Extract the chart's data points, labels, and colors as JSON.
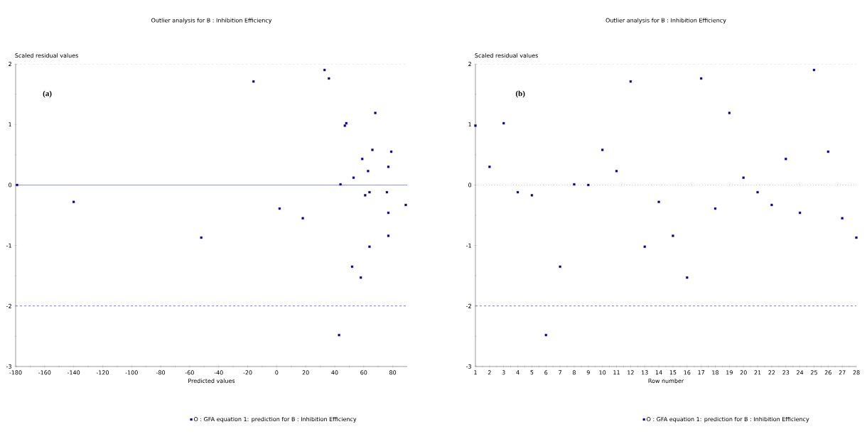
{
  "chart_data": [
    {
      "type": "scatter",
      "title": "Outlier analysis for B : Inhibition Efficiency",
      "xlabel": "Predicted values",
      "ylabel": "Scaled residual values",
      "annotations": [
        "(a)"
      ],
      "series": [
        {
          "name": "O : GFA equation 1: prediction for B : Inhibition Efficiency",
          "color": "#000099",
          "x": [
            47,
            77,
            48,
            64,
            61,
            43,
            52,
            44,
            -179,
            66,
            63,
            -16,
            64,
            -140,
            77,
            58,
            36,
            2,
            68,
            53,
            76,
            89,
            59,
            77,
            33,
            79,
            18,
            -52
          ],
          "values": [
            0.98,
            0.3,
            1.02,
            -0.12,
            -0.17,
            -2.48,
            -1.35,
            0.01,
            0.0,
            0.58,
            0.23,
            1.71,
            -1.02,
            -0.28,
            -0.84,
            -1.53,
            1.76,
            -0.39,
            1.19,
            0.12,
            -0.12,
            -0.33,
            0.43,
            -0.46,
            1.9,
            0.55,
            -0.55,
            -0.87
          ]
        }
      ],
      "xlim": [
        -180,
        90
      ],
      "xticks": [
        -180,
        -160,
        -140,
        -120,
        -100,
        -80,
        -60,
        -40,
        -20,
        0,
        20,
        40,
        60,
        80
      ],
      "ylim": [
        -3,
        2
      ],
      "yticks": [
        -3,
        -2,
        -1,
        0,
        1,
        2
      ],
      "ref_lines": [
        {
          "axis": "y",
          "value": 2,
          "line_style": "dashed",
          "color": "#000066"
        },
        {
          "axis": "y",
          "value": -2,
          "line_style": "dashed",
          "color": "#000066"
        },
        {
          "axis": "y",
          "value": 0,
          "line_style": "solid",
          "color": "#4040a8"
        }
      ],
      "marker": "square",
      "legend": "bottom"
    },
    {
      "type": "scatter",
      "title": "Outlier analysis for B : Inhibition Efficiency",
      "xlabel": "Row number",
      "ylabel": "Scaled residual values",
      "annotations": [
        "(b)"
      ],
      "series": [
        {
          "name": "O : GFA equation 1: prediction for B : Inhibition Efficiency",
          "color": "#000099",
          "x": [
            1,
            2,
            3,
            4,
            5,
            6,
            7,
            8,
            9,
            10,
            11,
            12,
            13,
            14,
            15,
            16,
            17,
            18,
            19,
            20,
            21,
            22,
            23,
            24,
            25,
            26,
            27,
            28
          ],
          "values": [
            0.98,
            0.3,
            1.02,
            -0.12,
            -0.17,
            -2.48,
            -1.35,
            0.01,
            0.0,
            0.58,
            0.23,
            1.71,
            -1.02,
            -0.28,
            -0.84,
            -1.53,
            1.76,
            -0.39,
            1.19,
            0.12,
            -0.12,
            -0.33,
            0.43,
            -0.46,
            1.9,
            0.55,
            -0.55,
            -0.87
          ]
        }
      ],
      "xlim": [
        1,
        28
      ],
      "xticks": [
        1,
        2,
        3,
        4,
        5,
        6,
        7,
        8,
        9,
        10,
        11,
        12,
        13,
        14,
        15,
        16,
        17,
        18,
        19,
        20,
        21,
        22,
        23,
        24,
        25,
        26,
        27,
        28
      ],
      "ylim": [
        -3,
        2
      ],
      "yticks": [
        -3,
        -2,
        -1,
        0,
        1,
        2
      ],
      "ref_lines": [
        {
          "axis": "y",
          "value": 2,
          "line_style": "dashed",
          "color": "#000066"
        },
        {
          "axis": "y",
          "value": -2,
          "line_style": "dashed",
          "color": "#000066"
        },
        {
          "axis": "y",
          "value": 0,
          "line_style": "dotted",
          "color": "#808080"
        }
      ],
      "marker": "square",
      "legend": "bottom"
    }
  ]
}
